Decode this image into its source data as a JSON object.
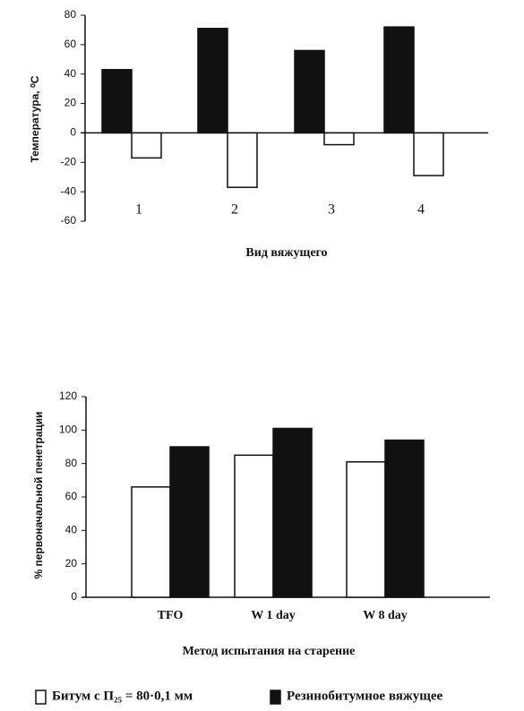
{
  "chart_data": [
    {
      "type": "bar",
      "y_label": "Температура, ⁰С",
      "x_label": "Вид вяжущего",
      "categories": [
        "1",
        "2",
        "3",
        "4"
      ],
      "series": [
        {
          "color": "#111111",
          "values": [
            43,
            71,
            56,
            72
          ]
        },
        {
          "color": "#ffffff",
          "values": [
            -17,
            -37,
            -8,
            -29
          ]
        }
      ],
      "ylim": [
        -60,
        80
      ],
      "yticks": [
        -60,
        -40,
        -20,
        0,
        20,
        40,
        60,
        80
      ]
    },
    {
      "type": "bar",
      "y_label": "% первоначальной пенетрации",
      "x_label": "Метод испытания на старение",
      "categories": [
        "TFO",
        "W 1 day",
        "W 8 day"
      ],
      "series": [
        {
          "name": "Битум с П₂₅ = 80·0,1 мм",
          "color": "#ffffff",
          "values": [
            66,
            85,
            81
          ]
        },
        {
          "name": "Резинобитумное вяжущее",
          "color": "#111111",
          "values": [
            90,
            101,
            94
          ]
        }
      ],
      "ylim": [
        0,
        120
      ],
      "yticks": [
        0,
        20,
        40,
        60,
        80,
        100,
        120
      ]
    }
  ]
}
